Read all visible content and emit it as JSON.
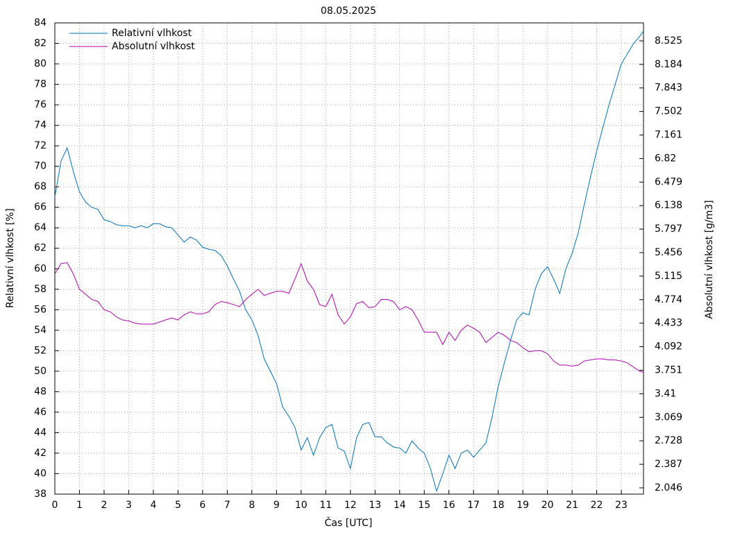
{
  "chart_data": {
    "type": "line",
    "title": "08.05.2025",
    "xlabel": "Čas [UTC]",
    "ylabel": "Relativní vlhkost [%]",
    "y2label": "Absolutní vlhkost [g/m3]",
    "x": [
      0,
      0.25,
      0.5,
      0.75,
      1,
      1.25,
      1.5,
      1.75,
      2,
      2.25,
      2.5,
      2.75,
      3,
      3.25,
      3.5,
      3.75,
      4,
      4.25,
      4.5,
      4.75,
      5,
      5.25,
      5.5,
      5.75,
      6,
      6.25,
      6.5,
      6.75,
      7,
      7.25,
      7.5,
      7.75,
      8,
      8.25,
      8.5,
      8.75,
      9,
      9.25,
      9.5,
      9.75,
      10,
      10.25,
      10.5,
      10.75,
      11,
      11.25,
      11.5,
      11.75,
      12,
      12.25,
      12.5,
      12.75,
      13,
      13.25,
      13.5,
      13.75,
      14,
      14.25,
      14.5,
      14.75,
      15,
      15.25,
      15.5,
      15.75,
      16,
      16.25,
      16.5,
      16.75,
      17,
      17.25,
      17.5,
      17.75,
      18,
      18.25,
      18.5,
      18.75,
      19,
      19.25,
      19.5,
      19.75,
      20,
      20.25,
      20.5,
      20.75,
      21,
      21.25,
      21.5,
      21.75,
      22,
      22.25,
      22.5,
      22.75,
      23,
      23.25,
      23.5,
      23.75,
      23.9
    ],
    "series": [
      {
        "name": "Relativní vlhkost",
        "color": "#0072bd",
        "values": [
          67,
          70.5,
          71.8,
          69.5,
          67.5,
          66.5,
          66,
          65.8,
          64.8,
          64.6,
          64.3,
          64.2,
          64.2,
          64,
          64.2,
          64,
          64.4,
          64.4,
          64.1,
          64,
          63.3,
          62.6,
          63.1,
          62.8,
          62.1,
          61.9,
          61.8,
          61.3,
          60.3,
          59,
          57.8,
          56,
          55,
          53.5,
          51.2,
          50,
          48.8,
          46.5,
          45.6,
          44.5,
          42.3,
          43.5,
          41.8,
          43.5,
          44.5,
          44.8,
          42.5,
          42.2,
          40.5,
          43.5,
          44.8,
          45,
          43.6,
          43.6,
          43,
          42.6,
          42.5,
          42,
          43.2,
          42.5,
          42,
          40.5,
          38.3,
          40,
          41.8,
          40.5,
          42,
          42.3,
          41.6,
          42.3,
          43,
          45.5,
          48.5,
          50.8,
          53,
          55,
          55.7,
          55.5,
          58,
          59.5,
          60.2,
          59,
          57.6,
          60,
          61.5,
          63.5,
          66.3,
          69,
          71.5,
          73.8,
          76,
          78,
          80,
          81,
          82,
          82.7,
          83.2
        ]
      },
      {
        "name": "Absolutní vlhkost",
        "color": "#b000b0",
        "axis": "y2",
        "values": [
          5.148,
          5.296,
          5.31,
          5.148,
          4.925,
          4.851,
          4.777,
          4.747,
          4.628,
          4.598,
          4.524,
          4.48,
          4.465,
          4.435,
          4.42,
          4.42,
          4.42,
          4.45,
          4.48,
          4.509,
          4.48,
          4.554,
          4.598,
          4.569,
          4.569,
          4.598,
          4.702,
          4.747,
          4.732,
          4.702,
          4.673,
          4.777,
          4.851,
          4.925,
          4.836,
          4.866,
          4.895,
          4.895,
          4.866,
          5.074,
          5.296,
          5.044,
          4.925,
          4.702,
          4.673,
          4.851,
          4.554,
          4.42,
          4.524,
          4.717,
          4.747,
          4.658,
          4.673,
          4.777,
          4.777,
          4.747,
          4.628,
          4.673,
          4.628,
          4.48,
          4.301,
          4.301,
          4.301,
          4.123,
          4.301,
          4.183,
          4.331,
          4.405,
          4.36,
          4.301,
          4.153,
          4.227,
          4.301,
          4.257,
          4.183,
          4.153,
          4.079,
          4.019,
          4.034,
          4.034,
          3.99,
          3.886,
          3.826,
          3.826,
          3.811,
          3.826,
          3.886,
          3.9,
          3.915,
          3.915,
          3.9,
          3.9,
          3.886,
          3.856,
          3.796,
          3.737,
          3.722
        ]
      }
    ],
    "xlim": [
      0,
      23.9
    ],
    "xticks": [
      0,
      1,
      2,
      3,
      4,
      5,
      6,
      7,
      8,
      9,
      10,
      11,
      12,
      13,
      14,
      15,
      16,
      17,
      18,
      19,
      20,
      21,
      22,
      23
    ],
    "ylim": [
      38,
      84
    ],
    "yticks": [
      38,
      40,
      42,
      44,
      46,
      48,
      50,
      52,
      54,
      56,
      58,
      60,
      62,
      64,
      66,
      68,
      70,
      72,
      74,
      76,
      78,
      80,
      82,
      84
    ],
    "y2lim": [
      1.955,
      8.786
    ],
    "y2ticks": [
      2.046,
      2.387,
      2.728,
      3.069,
      3.41,
      3.751,
      4.092,
      4.433,
      4.774,
      5.115,
      5.456,
      5.797,
      6.138,
      6.479,
      6.82,
      7.161,
      7.502,
      7.843,
      8.184,
      8.525
    ],
    "grid": true,
    "legend": "upper-left"
  }
}
